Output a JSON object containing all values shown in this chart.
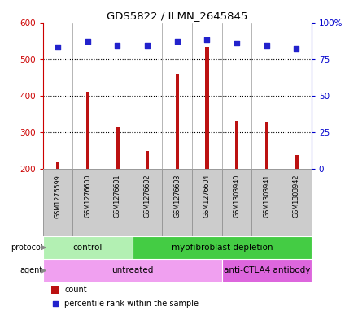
{
  "title": "GDS5822 / ILMN_2645845",
  "samples": [
    "GSM1276599",
    "GSM1276600",
    "GSM1276601",
    "GSM1276602",
    "GSM1276603",
    "GSM1276604",
    "GSM1303940",
    "GSM1303941",
    "GSM1303942"
  ],
  "counts": [
    218,
    410,
    315,
    250,
    460,
    533,
    330,
    328,
    238
  ],
  "percentile_ranks": [
    83,
    87,
    84,
    84,
    87,
    88,
    86,
    84,
    82
  ],
  "ylim_left": [
    200,
    600
  ],
  "ylim_right": [
    0,
    100
  ],
  "yticks_left": [
    200,
    300,
    400,
    500,
    600
  ],
  "yticks_right": [
    0,
    25,
    50,
    75,
    100
  ],
  "bar_color": "#bb1111",
  "scatter_color": "#2222cc",
  "protocol_groups": [
    {
      "label": "control",
      "start": 0,
      "end": 3,
      "color": "#b3f0b3"
    },
    {
      "label": "myofibroblast depletion",
      "start": 3,
      "end": 9,
      "color": "#44cc44"
    }
  ],
  "agent_groups": [
    {
      "label": "untreated",
      "start": 0,
      "end": 6,
      "color": "#f0a0f0"
    },
    {
      "label": "anti-CTLA4 antibody",
      "start": 6,
      "end": 9,
      "color": "#dd66dd"
    }
  ],
  "bar_width": 0.12,
  "sample_box_color": "#cccccc",
  "sample_box_edge": "#999999",
  "background_color": "#ffffff",
  "left_axis_color": "#cc0000",
  "right_axis_color": "#0000cc",
  "gridline_yticks": [
    300,
    400,
    500
  ],
  "arrow_color": "#888888"
}
